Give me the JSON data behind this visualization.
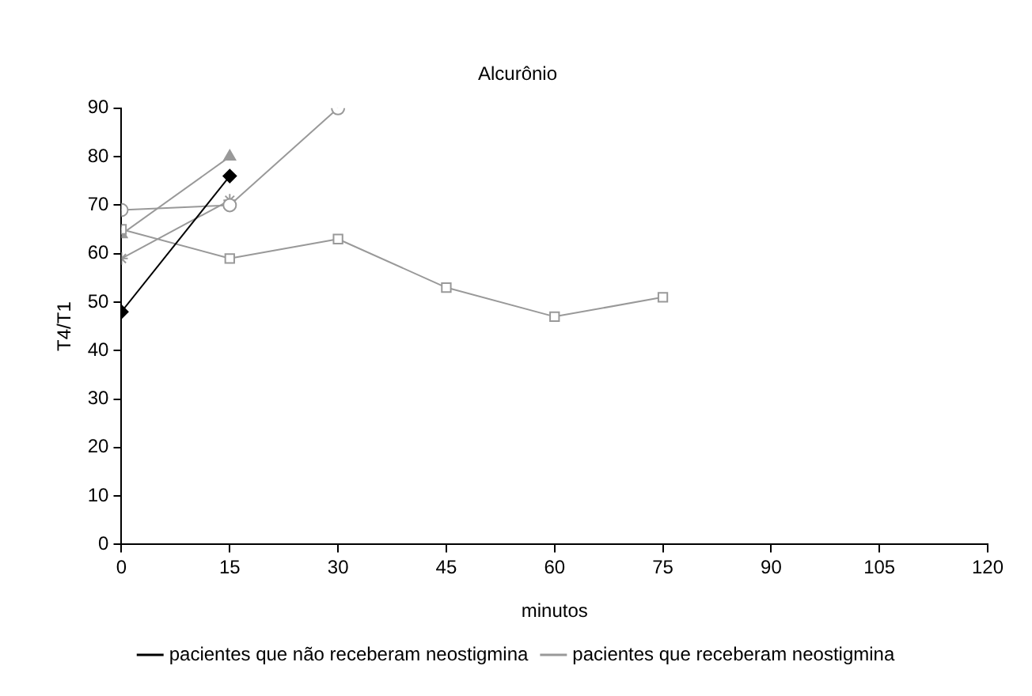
{
  "chart_data": {
    "type": "line",
    "title": "Alcurônio",
    "xlabel": "minutos",
    "ylabel": "T4/T1",
    "xlim": [
      0,
      120
    ],
    "xticks": [
      0,
      15,
      30,
      45,
      60,
      75,
      90,
      105,
      120
    ],
    "ylim": [
      0,
      90
    ],
    "yticks": [
      0,
      10,
      20,
      30,
      40,
      50,
      60,
      70,
      80,
      90
    ],
    "grid": false,
    "legend": "bottom",
    "line_style": "solid",
    "series": [
      {
        "name": "pacientes que não receberam neostigmina",
        "color": "#000000",
        "marker": "diamond",
        "x": [
          0,
          15
        ],
        "values": [
          48,
          76
        ]
      },
      {
        "name": "pacientes que receberam neostigmina",
        "color": "#999999",
        "marker": "square",
        "x": [
          0,
          15,
          30,
          45,
          60,
          75
        ],
        "values": [
          65,
          59,
          63,
          53,
          47,
          51
        ]
      },
      {
        "color": "#999999",
        "marker": "triangle",
        "x": [
          0,
          15
        ],
        "values": [
          64,
          80
        ]
      },
      {
        "color": "#999999",
        "marker": "circle",
        "x": [
          0,
          15,
          30
        ],
        "values": [
          69,
          70,
          90
        ]
      },
      {
        "color": "#999999",
        "marker": "cross",
        "x": [
          0,
          15
        ],
        "values": [
          59,
          71
        ]
      }
    ]
  }
}
